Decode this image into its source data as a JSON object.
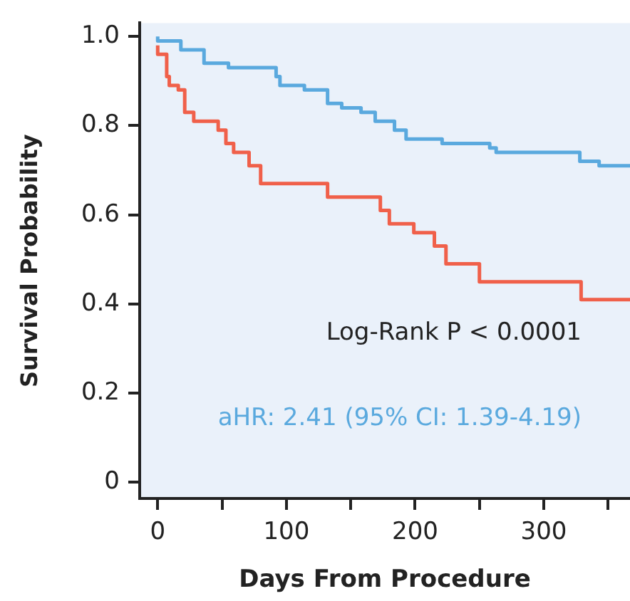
{
  "chart_data": {
    "type": "step",
    "xlabel": "Days From Procedure",
    "ylabel": "Survival Probability",
    "xlim": [
      -14,
      367
    ],
    "ylim": [
      -0.036,
      1.03
    ],
    "xticks": [
      0,
      {
        "value": 50,
        "label": null
      },
      100,
      {
        "value": 150,
        "label": null
      },
      200,
      {
        "value": 250,
        "label": null
      },
      300,
      {
        "value": 350,
        "label": null
      }
    ],
    "yticks": [
      0,
      0.2,
      0.4,
      0.6,
      0.8,
      {
        "value": 1,
        "label": "1.0"
      }
    ],
    "grid": false,
    "legend": false,
    "marker": "none",
    "line_style": "solid",
    "series": [
      {
        "color": "#5aa9de",
        "x": [
          0,
          18,
          36,
          55,
          92,
          95,
          114,
          132,
          143,
          158,
          169,
          184,
          193,
          221,
          258,
          263,
          282,
          328,
          343,
          356,
          367
        ],
        "values": [
          1.0,
          0.99,
          0.97,
          0.94,
          0.93,
          0.91,
          0.89,
          0.88,
          0.85,
          0.84,
          0.83,
          0.81,
          0.79,
          0.77,
          0.76,
          0.75,
          0.74,
          0.74,
          0.72,
          0.71,
          0.71
        ]
      },
      {
        "color": "#f0604a",
        "x": [
          0,
          7,
          9,
          16,
          21,
          28,
          47,
          53,
          59,
          71,
          80,
          132,
          173,
          180,
          199,
          215,
          224,
          250,
          329,
          335,
          367
        ],
        "values": [
          0.98,
          0.96,
          0.91,
          0.89,
          0.88,
          0.83,
          0.81,
          0.79,
          0.76,
          0.74,
          0.71,
          0.67,
          0.64,
          0.61,
          0.58,
          0.56,
          0.53,
          0.49,
          0.45,
          0.41,
          0.41
        ]
      }
    ],
    "annotations": [
      "Log-Rank P < 0.0001",
      "aHR: 2.41 (95% CI: 1.39-4.19)"
    ]
  }
}
